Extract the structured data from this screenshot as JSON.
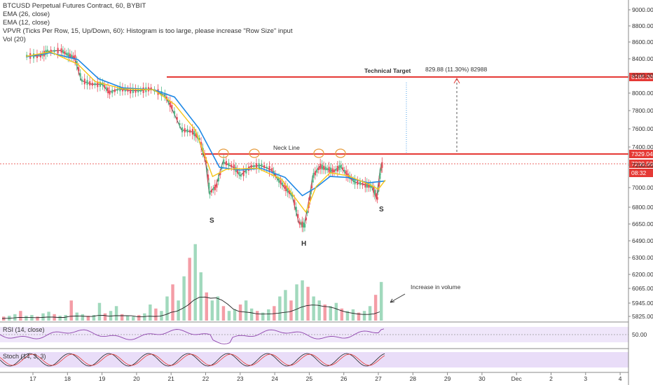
{
  "legend": {
    "title": "BTCUSD Perpetual Futures Contract, 60, BYBIT",
    "ema26": "EMA (26, close)",
    "ema12": "EMA (12, close)",
    "vpvr": "VPVR (Ticks Per Row, 15, Up/Down, 60): Histogram is too large, please increase \"Row Size\" input",
    "vol": "Vol (20)",
    "rsi": "RSI (14, close)",
    "stoch": "Stoch (14, 3, 3)"
  },
  "annotations": {
    "technical_target": "Technical Target",
    "measure": "829.88 (11.30%) 82988",
    "neck_line": "Neck Line",
    "left_shoulder": "S",
    "head": "H",
    "right_shoulder": "S",
    "volume_note": "Increase in volume"
  },
  "price_tags": {
    "target": "8185.20",
    "neckline": "7329.04",
    "current": "7230.50",
    "countdown": "08:32"
  },
  "colors": {
    "up": "#53b987",
    "down": "#eb4d5c",
    "ema26": "#1e88e5",
    "ema12": "#f5c518",
    "level": "#e53935",
    "rsi": "#8e44ad",
    "band": "#e1d1f5"
  },
  "chart_data": {
    "type": "candlestick",
    "title": "BTCUSD Perpetual Futures Contract, 60, BYBIT",
    "x_tick_labels": [
      "17",
      "18",
      "19",
      "20",
      "21",
      "22",
      "23",
      "24",
      "25",
      "26",
      "27",
      "28",
      "29",
      "30",
      "Dec",
      "2",
      "3",
      "4"
    ],
    "price_axis_labels": [
      "9000.00",
      "8800.00",
      "8600.00",
      "8400.00",
      "8200.00",
      "8000.00",
      "7800.00",
      "7600.00",
      "7400.00",
      "7200.00",
      "7000.00",
      "6800.00",
      "6650.00",
      "6490.00",
      "6300.00",
      "6200.00",
      "6065.00",
      "5945.00",
      "5825.00"
    ],
    "ylim": [
      5790,
      9080
    ],
    "price_path": [
      [
        16.8,
        8510
      ],
      [
        17.2,
        8510
      ],
      [
        17.4,
        8560
      ],
      [
        17.8,
        8570
      ],
      [
        18.0,
        8520
      ],
      [
        18.2,
        8490
      ],
      [
        18.4,
        8240
      ],
      [
        18.7,
        8200
      ],
      [
        19.0,
        8200
      ],
      [
        19.2,
        8110
      ],
      [
        19.5,
        8150
      ],
      [
        19.8,
        8130
      ],
      [
        20.1,
        8130
      ],
      [
        20.4,
        8150
      ],
      [
        20.8,
        8080
      ],
      [
        21.0,
        7950
      ],
      [
        21.3,
        7700
      ],
      [
        21.6,
        7680
      ],
      [
        21.8,
        7600
      ],
      [
        22.0,
        7350
      ],
      [
        22.1,
        7010
      ],
      [
        22.3,
        7090
      ],
      [
        22.5,
        7350
      ],
      [
        22.8,
        7290
      ],
      [
        23.0,
        7200
      ],
      [
        23.3,
        7300
      ],
      [
        23.6,
        7310
      ],
      [
        23.9,
        7260
      ],
      [
        24.1,
        7150
      ],
      [
        24.3,
        7060
      ],
      [
        24.5,
        6980
      ],
      [
        24.7,
        6680
      ],
      [
        24.85,
        6650
      ],
      [
        25.0,
        6950
      ],
      [
        25.1,
        7200
      ],
      [
        25.3,
        7300
      ],
      [
        25.5,
        7270
      ],
      [
        25.7,
        7250
      ],
      [
        25.9,
        7300
      ],
      [
        26.1,
        7200
      ],
      [
        26.3,
        7130
      ],
      [
        26.6,
        7100
      ],
      [
        26.8,
        7080
      ],
      [
        26.95,
        6950
      ],
      [
        27.05,
        7270
      ],
      [
        27.1,
        7330
      ]
    ],
    "ema12_path": [
      [
        16.8,
        8505
      ],
      [
        17.5,
        8555
      ],
      [
        18.3,
        8420
      ],
      [
        18.8,
        8230
      ],
      [
        19.6,
        8150
      ],
      [
        20.5,
        8140
      ],
      [
        21.1,
        7980
      ],
      [
        21.7,
        7700
      ],
      [
        22.2,
        7190
      ],
      [
        22.6,
        7270
      ],
      [
        23.5,
        7280
      ],
      [
        24.2,
        7160
      ],
      [
        24.6,
        6950
      ],
      [
        24.9,
        6800
      ],
      [
        25.2,
        7080
      ],
      [
        25.6,
        7230
      ],
      [
        26.1,
        7200
      ],
      [
        26.7,
        7110
      ],
      [
        27.0,
        7050
      ],
      [
        27.2,
        7150
      ]
    ],
    "ema26_path": [
      [
        16.8,
        8500
      ],
      [
        17.5,
        8545
      ],
      [
        18.3,
        8470
      ],
      [
        18.9,
        8260
      ],
      [
        19.6,
        8160
      ],
      [
        20.5,
        8140
      ],
      [
        21.1,
        8060
      ],
      [
        21.8,
        7720
      ],
      [
        22.4,
        7290
      ],
      [
        23.0,
        7260
      ],
      [
        23.6,
        7280
      ],
      [
        24.3,
        7180
      ],
      [
        24.8,
        6980
      ],
      [
        25.2,
        7070
      ],
      [
        25.6,
        7190
      ],
      [
        26.1,
        7180
      ],
      [
        26.7,
        7120
      ],
      [
        27.2,
        7140
      ]
    ],
    "levels": [
      {
        "name": "technical-target",
        "value": 8185.2
      },
      {
        "name": "neck-line",
        "value": 7329.04
      },
      {
        "name": "current-price",
        "value": 7230.5
      }
    ],
    "volume_heights": [
      0.05,
      0.06,
      0.08,
      0.12,
      0.06,
      0.07,
      0.05,
      0.09,
      0.11,
      0.08,
      0.06,
      0.07,
      0.25,
      0.1,
      0.08,
      0.06,
      0.07,
      0.22,
      0.09,
      0.12,
      0.18,
      0.08,
      0.06,
      0.05,
      0.07,
      0.09,
      0.2,
      0.15,
      0.12,
      0.3,
      0.45,
      0.25,
      0.55,
      0.78,
      0.95,
      0.6,
      0.35,
      0.25,
      0.3,
      0.18,
      0.12,
      0.14,
      0.2,
      0.25,
      0.15,
      0.12,
      0.1,
      0.14,
      0.18,
      0.3,
      0.38,
      0.25,
      0.45,
      0.5,
      0.42,
      0.3,
      0.25,
      0.2,
      0.18,
      0.22,
      0.15,
      0.12,
      0.14,
      0.1,
      0.12,
      0.18,
      0.32,
      0.48
    ],
    "rsi_range": [
      0,
      100
    ],
    "rsi_label": "50.00"
  }
}
